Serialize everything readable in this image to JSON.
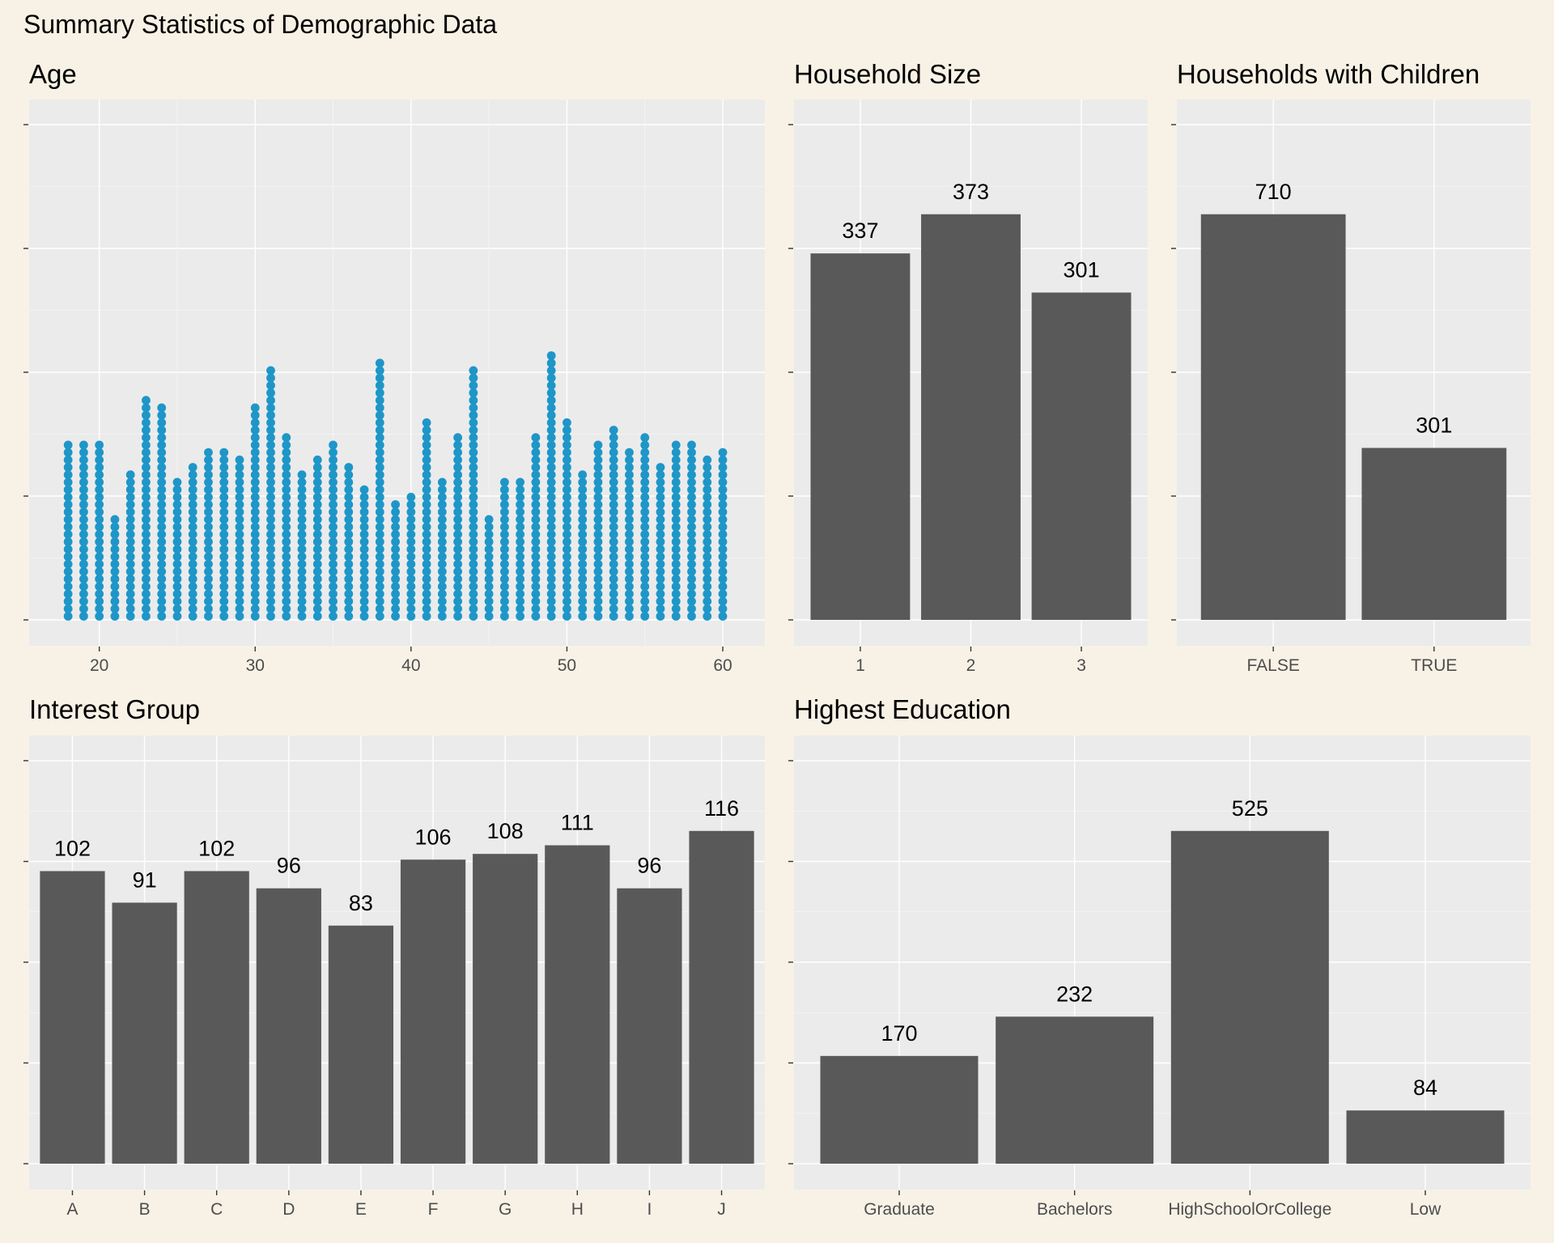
{
  "title": "Summary Statistics of Demographic Data",
  "colors": {
    "background": "#F8F2E6",
    "panel": "#EBEBEB",
    "bar": "#595959",
    "dot": "#1E96C8"
  },
  "chart_data": [
    {
      "id": "age",
      "type": "scatter",
      "subtype": "dotplot",
      "title": "Age",
      "xlabel": "",
      "ylabel": "",
      "x_ticks": [
        20,
        30,
        40,
        50,
        60
      ],
      "xlim": [
        15.5,
        62.7
      ],
      "x": [
        18,
        19,
        20,
        21,
        22,
        23,
        24,
        25,
        26,
        27,
        28,
        29,
        30,
        31,
        32,
        33,
        34,
        35,
        36,
        37,
        38,
        39,
        40,
        41,
        42,
        43,
        44,
        45,
        46,
        47,
        48,
        49,
        50,
        51,
        52,
        53,
        54,
        55,
        56,
        57,
        58,
        59,
        60
      ],
      "counts": [
        24,
        24,
        24,
        14,
        20,
        30,
        29,
        19,
        21,
        23,
        23,
        22,
        29,
        34,
        25,
        20,
        22,
        24,
        21,
        18,
        35,
        16,
        17,
        27,
        19,
        25,
        34,
        14,
        19,
        19,
        25,
        36,
        27,
        20,
        24,
        26,
        23,
        25,
        21,
        24,
        24,
        22,
        23
      ],
      "grid": true,
      "y_tick_labels": false
    },
    {
      "id": "household-size",
      "type": "bar",
      "title": "Household Size",
      "categories": [
        "1",
        "2",
        "3"
      ],
      "values": [
        337,
        373,
        301
      ],
      "ylim": [
        0,
        373
      ],
      "grid": true
    },
    {
      "id": "children",
      "type": "bar",
      "title": "Households with Children",
      "categories": [
        "FALSE",
        "TRUE"
      ],
      "values": [
        710,
        301
      ],
      "ylim": [
        0,
        710
      ],
      "grid": true
    },
    {
      "id": "interest-group",
      "type": "bar",
      "title": "Interest Group",
      "categories": [
        "A",
        "B",
        "C",
        "D",
        "E",
        "F",
        "G",
        "H",
        "I",
        "J"
      ],
      "values": [
        102,
        91,
        102,
        96,
        83,
        106,
        108,
        111,
        96,
        116
      ],
      "ylim": [
        0,
        116
      ],
      "grid": true
    },
    {
      "id": "education",
      "type": "bar",
      "title": "Highest Education",
      "categories": [
        "Graduate",
        "Bachelors",
        "HighSchoolOrCollege",
        "Low"
      ],
      "values": [
        170,
        232,
        525,
        84
      ],
      "ylim": [
        0,
        525
      ],
      "grid": true
    }
  ]
}
